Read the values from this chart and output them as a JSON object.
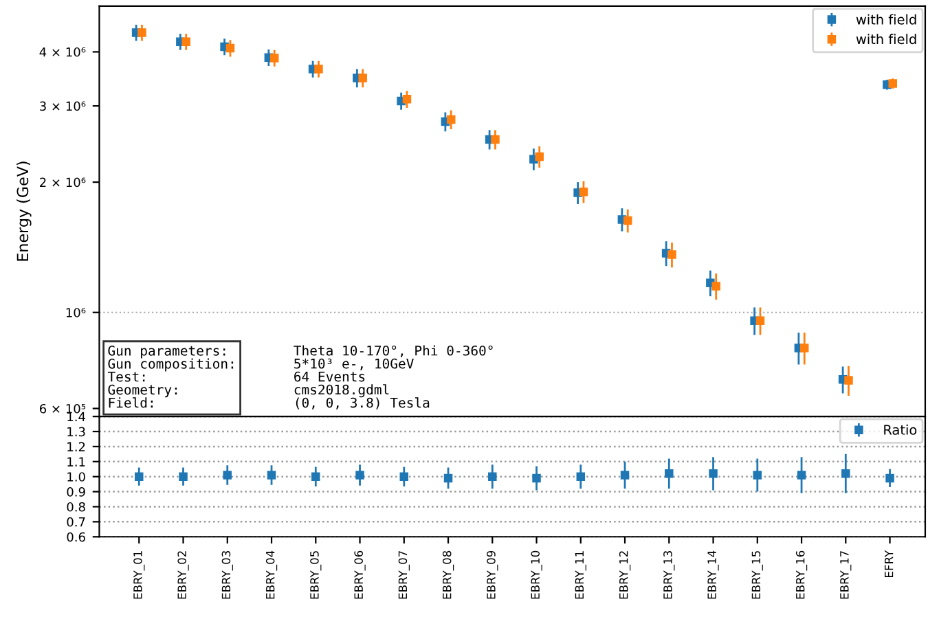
{
  "chart_data": [
    {
      "type": "scatter",
      "ylabel": "Energy (GeV)",
      "log": "y",
      "marker": "square",
      "legend": "top right",
      "tick_labels": "y",
      "categories": [
        null,
        null,
        null,
        null,
        null,
        null,
        null,
        null,
        null,
        null,
        null,
        null,
        null,
        null,
        null,
        null,
        null,
        null
      ],
      "ylim": [
        575000,
        5100000
      ],
      "yticks": [
        {
          "value": 600000,
          "label": "6 × 10⁵"
        },
        {
          "value": 1000000,
          "label": "10⁶"
        },
        {
          "value": 2000000,
          "label": "2 × 10⁶"
        },
        {
          "value": 3000000,
          "label": "3 × 10⁶"
        },
        {
          "value": 4000000,
          "label": "4 × 10⁶"
        }
      ],
      "ref_lines": [
        {
          "axis": "y",
          "value": 1000000,
          "line_style": "dotted",
          "color": "#aaaaaa"
        }
      ],
      "series": [
        {
          "name": "with field",
          "color": "#1f77b4",
          "values": [
            4430000,
            4220000,
            4110000,
            3880000,
            3650000,
            3480000,
            3080000,
            2760000,
            2510000,
            2260000,
            1890000,
            1640000,
            1370000,
            1170000,
            957000,
            828000,
            700000,
            3360000
          ],
          "errors": [
            190000,
            180000,
            180000,
            170000,
            160000,
            170000,
            140000,
            140000,
            130000,
            130000,
            110000,
            100000,
            90000,
            80000,
            70000,
            70000,
            50000,
            90000
          ]
        },
        {
          "name": "with field",
          "color": "#ff7f0e",
          "values": [
            4430000,
            4220000,
            4080000,
            3870000,
            3650000,
            3480000,
            3110000,
            2790000,
            2510000,
            2290000,
            1900000,
            1630000,
            1360000,
            1150000,
            957000,
            828000,
            697000,
            3380000
          ],
          "errors": [
            190000,
            180000,
            180000,
            170000,
            160000,
            170000,
            140000,
            140000,
            130000,
            130000,
            110000,
            100000,
            90000,
            80000,
            70000,
            70000,
            55000,
            90000
          ]
        }
      ],
      "annotations": [
        "Gun parameters: Theta 10-170°, Phi 0-360°",
        "Gun composition: 5*10³ e-, 10GeV",
        "Test: 64 Events",
        "Geometry: cms2018.gdml",
        "Field: (0, 0, 3.8) Tesla"
      ]
    },
    {
      "type": "scatter",
      "marker": "square",
      "legend": "top right",
      "grid": "y",
      "categories": [
        "EBRY_01",
        "EBRY_02",
        "EBRY_03",
        "EBRY_04",
        "EBRY_05",
        "EBRY_06",
        "EBRY_07",
        "EBRY_08",
        "EBRY_09",
        "EBRY_10",
        "EBRY_11",
        "EBRY_12",
        "EBRY_13",
        "EBRY_14",
        "EBRY_15",
        "EBRY_16",
        "EBRY_17",
        "EFRY"
      ],
      "ylim": [
        0.6,
        1.4
      ],
      "yticks": [
        0.6,
        0.7,
        0.8,
        0.9,
        {
          "value": 1,
          "label": "1.0"
        },
        1.1,
        1.2,
        1.3,
        1.4
      ],
      "series": [
        {
          "name": "Ratio",
          "color": "#1f77b4",
          "values": [
            1.0,
            1.0,
            1.01,
            1.01,
            1.0,
            1.01,
            1.0,
            0.99,
            1.0,
            0.99,
            1.0,
            1.01,
            1.02,
            1.02,
            1.01,
            1.01,
            1.02,
            0.99
          ],
          "errors": [
            0.06,
            0.06,
            0.065,
            0.065,
            0.065,
            0.07,
            0.065,
            0.07,
            0.08,
            0.08,
            0.08,
            0.09,
            0.1,
            0.11,
            0.11,
            0.12,
            0.13,
            0.06
          ]
        }
      ]
    }
  ]
}
